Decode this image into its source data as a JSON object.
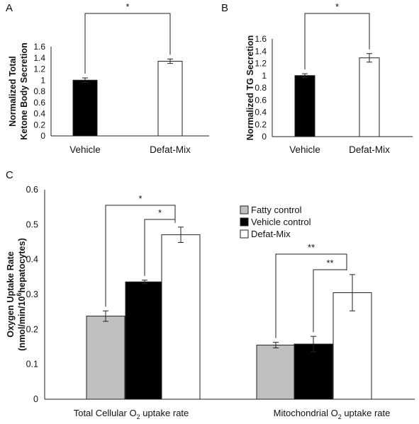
{
  "colors": {
    "fatty": "#c0c0c0",
    "vehicle": "#000000",
    "defat": "#ffffff",
    "bar_edge": "#222222"
  },
  "chart_data": [
    {
      "panel": "A",
      "type": "bar",
      "ylabel_lines": [
        "Normalized Total",
        "Ketone Body Secretion"
      ],
      "ylim": [
        0,
        1.6
      ],
      "yticks": [
        "0",
        "0.2",
        "0.4",
        "0.6",
        "0.8",
        "1",
        "1.2",
        "1.4",
        "1.6"
      ],
      "categories": [
        "Vehicle",
        "Defat-Mix"
      ],
      "values": [
        1.0,
        1.34
      ],
      "errors": [
        0.04,
        0.04
      ],
      "bar_colors": [
        "#000000",
        "#ffffff"
      ],
      "significance": "*"
    },
    {
      "panel": "B",
      "type": "bar",
      "ylabel_lines": [
        "Normalized TG Secretion"
      ],
      "ylim": [
        0,
        1.6
      ],
      "yticks": [
        "0",
        "0.2",
        "0.4",
        "0.6",
        "0.8",
        "1",
        "1.2",
        "1.4",
        "1.6"
      ],
      "categories": [
        "Vehicle",
        "Defat-Mix"
      ],
      "values": [
        1.0,
        1.29
      ],
      "errors": [
        0.03,
        0.07
      ],
      "bar_colors": [
        "#000000",
        "#ffffff"
      ],
      "significance": "*"
    },
    {
      "panel": "C",
      "type": "bar",
      "ylabel_lines": [
        "Oxygen Uptake Rate",
        "(nmol/min/10",
        "6",
        "hepatocytes)"
      ],
      "ylim": [
        0,
        0.6
      ],
      "yticks": [
        "0",
        "0.1",
        "0.2",
        "0.3",
        "0.4",
        "0.5",
        "0.6"
      ],
      "group_labels": [
        {
          "pre": "Total Cellular O",
          "sub": "2",
          "post": "uptake rate"
        },
        {
          "pre": "Mitochondrial O",
          "sub": "2",
          "post": "uptake  rate"
        }
      ],
      "series": [
        {
          "name": "Fatty control",
          "values": [
            0.238,
            0.155
          ],
          "errors": [
            0.015,
            0.008
          ]
        },
        {
          "name": "Vehicle control",
          "values": [
            0.336,
            0.158
          ],
          "errors": [
            0.005,
            0.022
          ]
        },
        {
          "name": "Defat-Mix",
          "values": [
            0.471,
            0.305
          ],
          "errors": [
            0.022,
            0.052
          ]
        }
      ],
      "significance": [
        "*",
        "*",
        "**",
        "**"
      ]
    }
  ]
}
